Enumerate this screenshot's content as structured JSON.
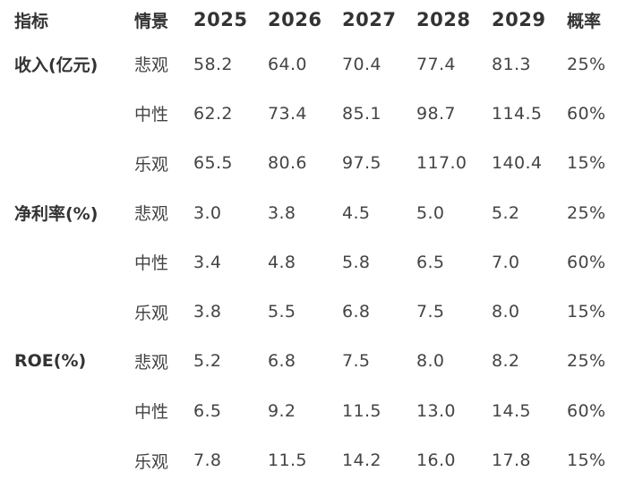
{
  "header": {
    "metric": "指标",
    "scenario": "情景",
    "years": [
      "2025",
      "2026",
      "2027",
      "2028",
      "2029"
    ],
    "probability": "概率"
  },
  "groups": [
    {
      "metric": "收入(亿元)",
      "rows": [
        {
          "scenario": "悲观",
          "values": [
            "58.2",
            "64.0",
            "70.4",
            "77.4",
            "81.3"
          ],
          "probability": "25%"
        },
        {
          "scenario": "中性",
          "values": [
            "62.2",
            "73.4",
            "85.1",
            "98.7",
            "114.5"
          ],
          "probability": "60%"
        },
        {
          "scenario": "乐观",
          "values": [
            "65.5",
            "80.6",
            "97.5",
            "117.0",
            "140.4"
          ],
          "probability": "15%"
        }
      ]
    },
    {
      "metric": "净利率(%)",
      "rows": [
        {
          "scenario": "悲观",
          "values": [
            "3.0",
            "3.8",
            "4.5",
            "5.0",
            "5.2"
          ],
          "probability": "25%"
        },
        {
          "scenario": "中性",
          "values": [
            "3.4",
            "4.8",
            "5.8",
            "6.5",
            "7.0"
          ],
          "probability": "60%"
        },
        {
          "scenario": "乐观",
          "values": [
            "3.8",
            "5.5",
            "6.8",
            "7.5",
            "8.0"
          ],
          "probability": "15%"
        }
      ]
    },
    {
      "metric": "ROE(%)",
      "rows": [
        {
          "scenario": "悲观",
          "values": [
            "5.2",
            "6.8",
            "7.5",
            "8.0",
            "8.2"
          ],
          "probability": "25%"
        },
        {
          "scenario": "中性",
          "values": [
            "6.5",
            "9.2",
            "11.5",
            "13.0",
            "14.5"
          ],
          "probability": "60%"
        },
        {
          "scenario": "乐观",
          "values": [
            "7.8",
            "11.5",
            "14.2",
            "16.0",
            "17.8"
          ],
          "probability": "15%"
        }
      ]
    }
  ]
}
